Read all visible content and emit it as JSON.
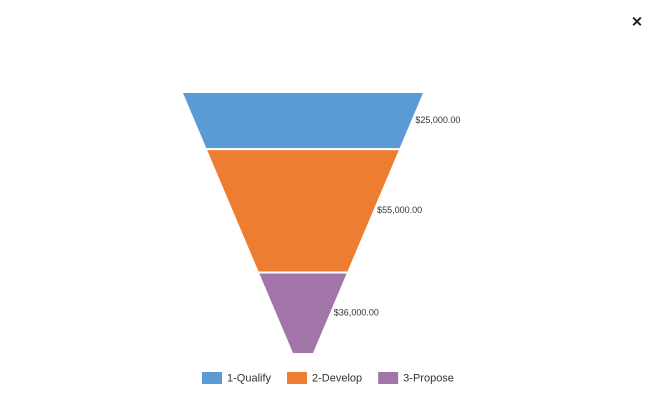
{
  "close_button": "✕",
  "chart_data": {
    "type": "funnel",
    "categories": [
      "1-Qualify",
      "2-Develop",
      "3-Propose"
    ],
    "values": [
      25000,
      55000,
      36000
    ],
    "value_labels": [
      "$25,000.00",
      "$55,000.00",
      "$36,000.00"
    ],
    "colors": [
      "#5b9bd5",
      "#ed7d31",
      "#a275a9"
    ]
  }
}
